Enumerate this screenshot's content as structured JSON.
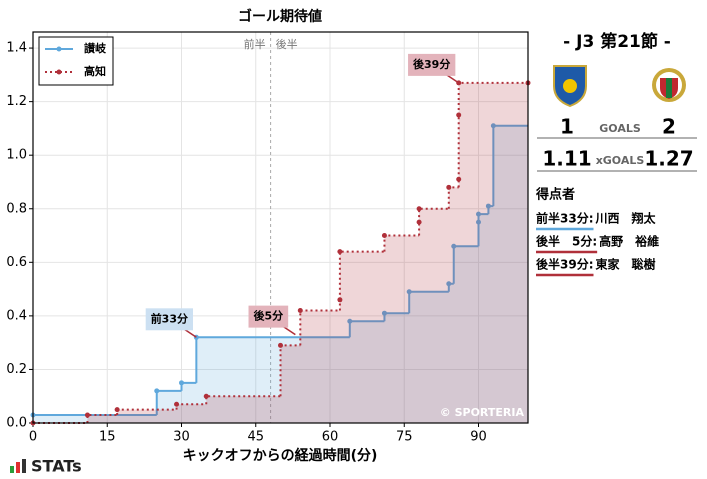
{
  "chart_data": {
    "type": "step",
    "title": "ゴール期待値",
    "x_label": "キックオフからの経過時間(分)",
    "xlim": [
      0,
      100
    ],
    "ylim": [
      0,
      1.46
    ],
    "xticks": [
      0,
      15,
      30,
      45,
      60,
      75,
      90
    ],
    "yticks": [
      {
        "value": 0,
        "label": "0.0"
      },
      0.2,
      0.4,
      0.6,
      0.8,
      {
        "value": 1,
        "label": "1.0"
      },
      1.2,
      1.4
    ],
    "grid": true,
    "legend": "upper left",
    "half_line": {
      "x": 48,
      "labels": [
        "前半",
        "後半"
      ]
    },
    "series": [
      {
        "name": "讃岐",
        "color": "#5fa8dc",
        "line": "solid",
        "x": [
          0,
          25,
          30,
          33,
          64,
          71,
          76,
          84,
          85,
          90,
          90,
          92,
          93
        ],
        "values": [
          0.03,
          0.12,
          0.15,
          0.32,
          0.38,
          0.41,
          0.49,
          0.52,
          0.66,
          0.75,
          0.78,
          0.81,
          1.11
        ]
      },
      {
        "name": "高知",
        "color": "#b0303a",
        "line": "dotted",
        "x": [
          0,
          11,
          17,
          29,
          35,
          50,
          54,
          62,
          62,
          71,
          78,
          78,
          84,
          86,
          86,
          86,
          100
        ],
        "values": [
          0,
          0.03,
          0.05,
          0.07,
          0.1,
          0.29,
          0.42,
          0.46,
          0.64,
          0.7,
          0.75,
          0.8,
          0.88,
          0.91,
          1.15,
          1.27,
          1.27
        ]
      }
    ],
    "annotations": [
      {
        "text": "前33分",
        "x": 33,
        "y": 0.32,
        "color": "#cce0f2"
      },
      {
        "text": "後5分",
        "x": 53,
        "y": 0.33,
        "color": "#e3b3bb"
      },
      {
        "text": "後39分",
        "x": 86,
        "y": 1.27,
        "color": "#e3b3bb"
      }
    ],
    "watermark": "© SPORTERIA"
  },
  "panel": {
    "match": "- J3 第21節 -",
    "goals": {
      "label": "GOALS",
      "home": "1",
      "away": "2"
    },
    "xgoals": {
      "label": "xGOALS",
      "home": "1.11",
      "away": "1.27"
    },
    "scorers_title": "得点者",
    "scorers": [
      {
        "time": "前半33分:",
        "name": "川西　翔太",
        "color": "#5fa8dc"
      },
      {
        "time": "後半　5分:",
        "name": "高野　裕維",
        "color": "#b0303a"
      },
      {
        "time": "後半39分:",
        "name": "東家　聡樹",
        "color": "#b0303a"
      }
    ]
  },
  "brand": "STATs"
}
